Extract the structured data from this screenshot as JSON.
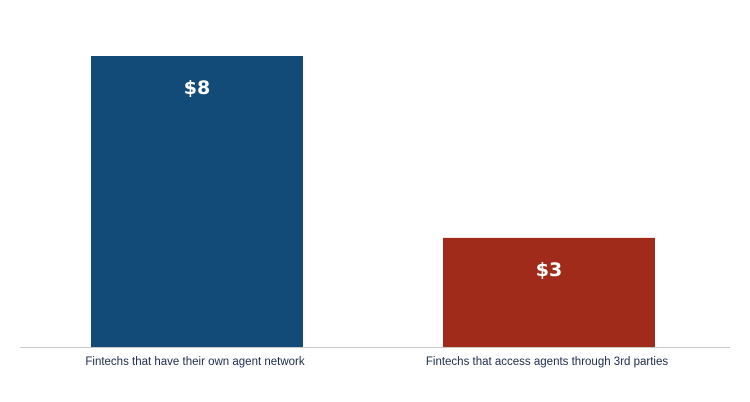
{
  "chart_data": {
    "type": "bar",
    "categories": [
      "Fintechs that have their own agent network",
      "Fintechs that access agents through 3rd parties"
    ],
    "values": [
      8,
      3
    ],
    "data_labels": [
      "$8",
      "$3"
    ],
    "colors": [
      "#124b78",
      "#a12b1a"
    ],
    "axis_color": "#c8c8c8",
    "grid": false,
    "legend": "none",
    "ylim": [
      0,
      8
    ]
  }
}
